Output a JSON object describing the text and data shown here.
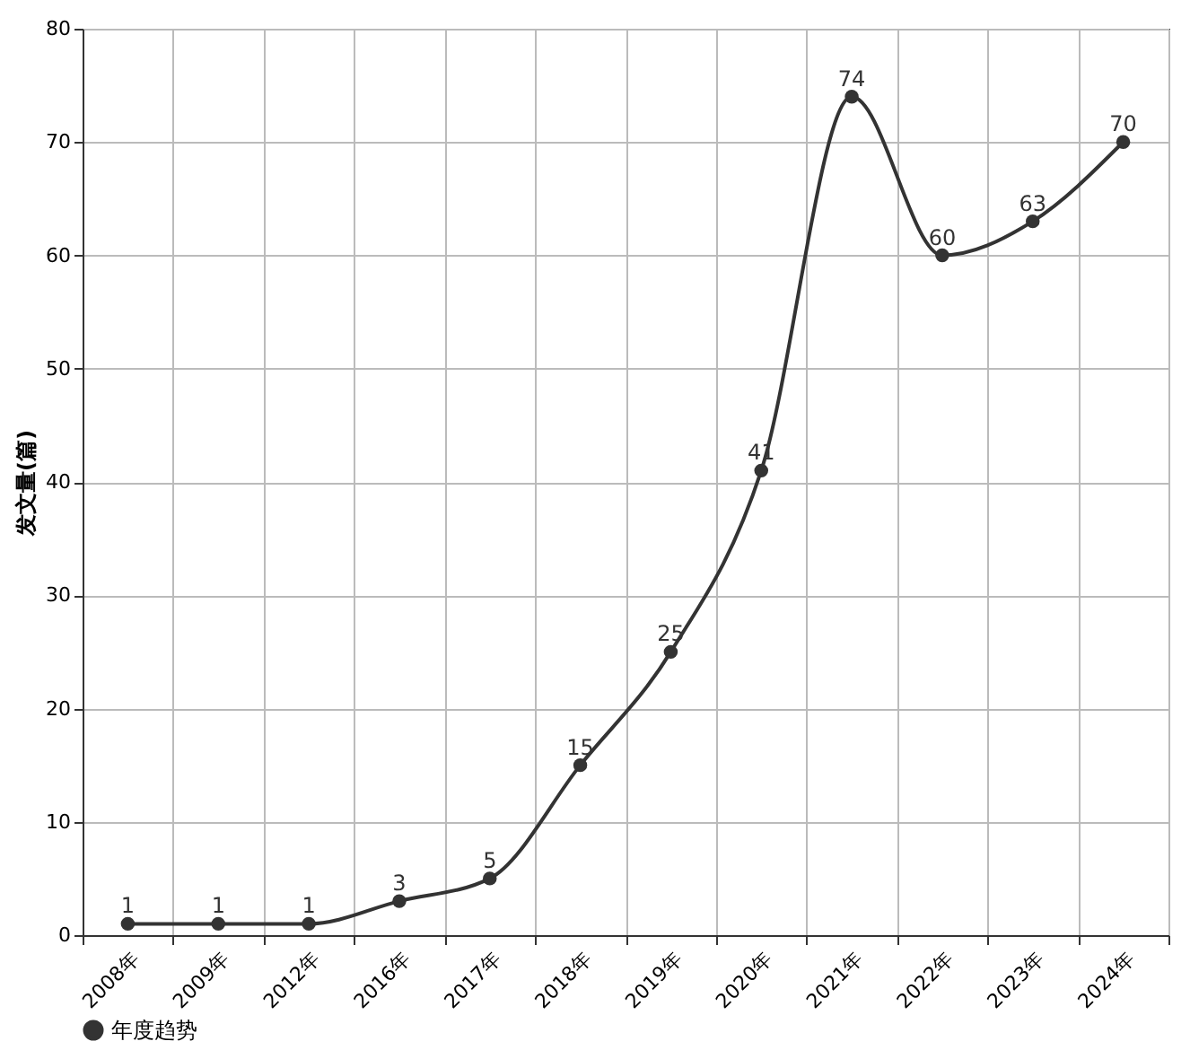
{
  "chart_data": {
    "type": "line",
    "ylabel": "发文量(篇)",
    "categories": [
      "2008年",
      "2009年",
      "2012年",
      "2016年",
      "2017年",
      "2018年",
      "2019年",
      "2020年",
      "2021年",
      "2022年",
      "2023年",
      "2024年"
    ],
    "series": [
      {
        "name": "年度趋势",
        "color": "#333333",
        "values": [
          1,
          1,
          1,
          3,
          5,
          15,
          25,
          41,
          74,
          60,
          63,
          70
        ]
      }
    ],
    "ylim": [
      0,
      80
    ],
    "yticks": [
      0,
      10,
      20,
      30,
      40,
      50,
      60,
      70,
      80
    ],
    "grid": true,
    "legend": "bottom",
    "marker": "circle",
    "line_style": "solid",
    "data_labels": true
  }
}
